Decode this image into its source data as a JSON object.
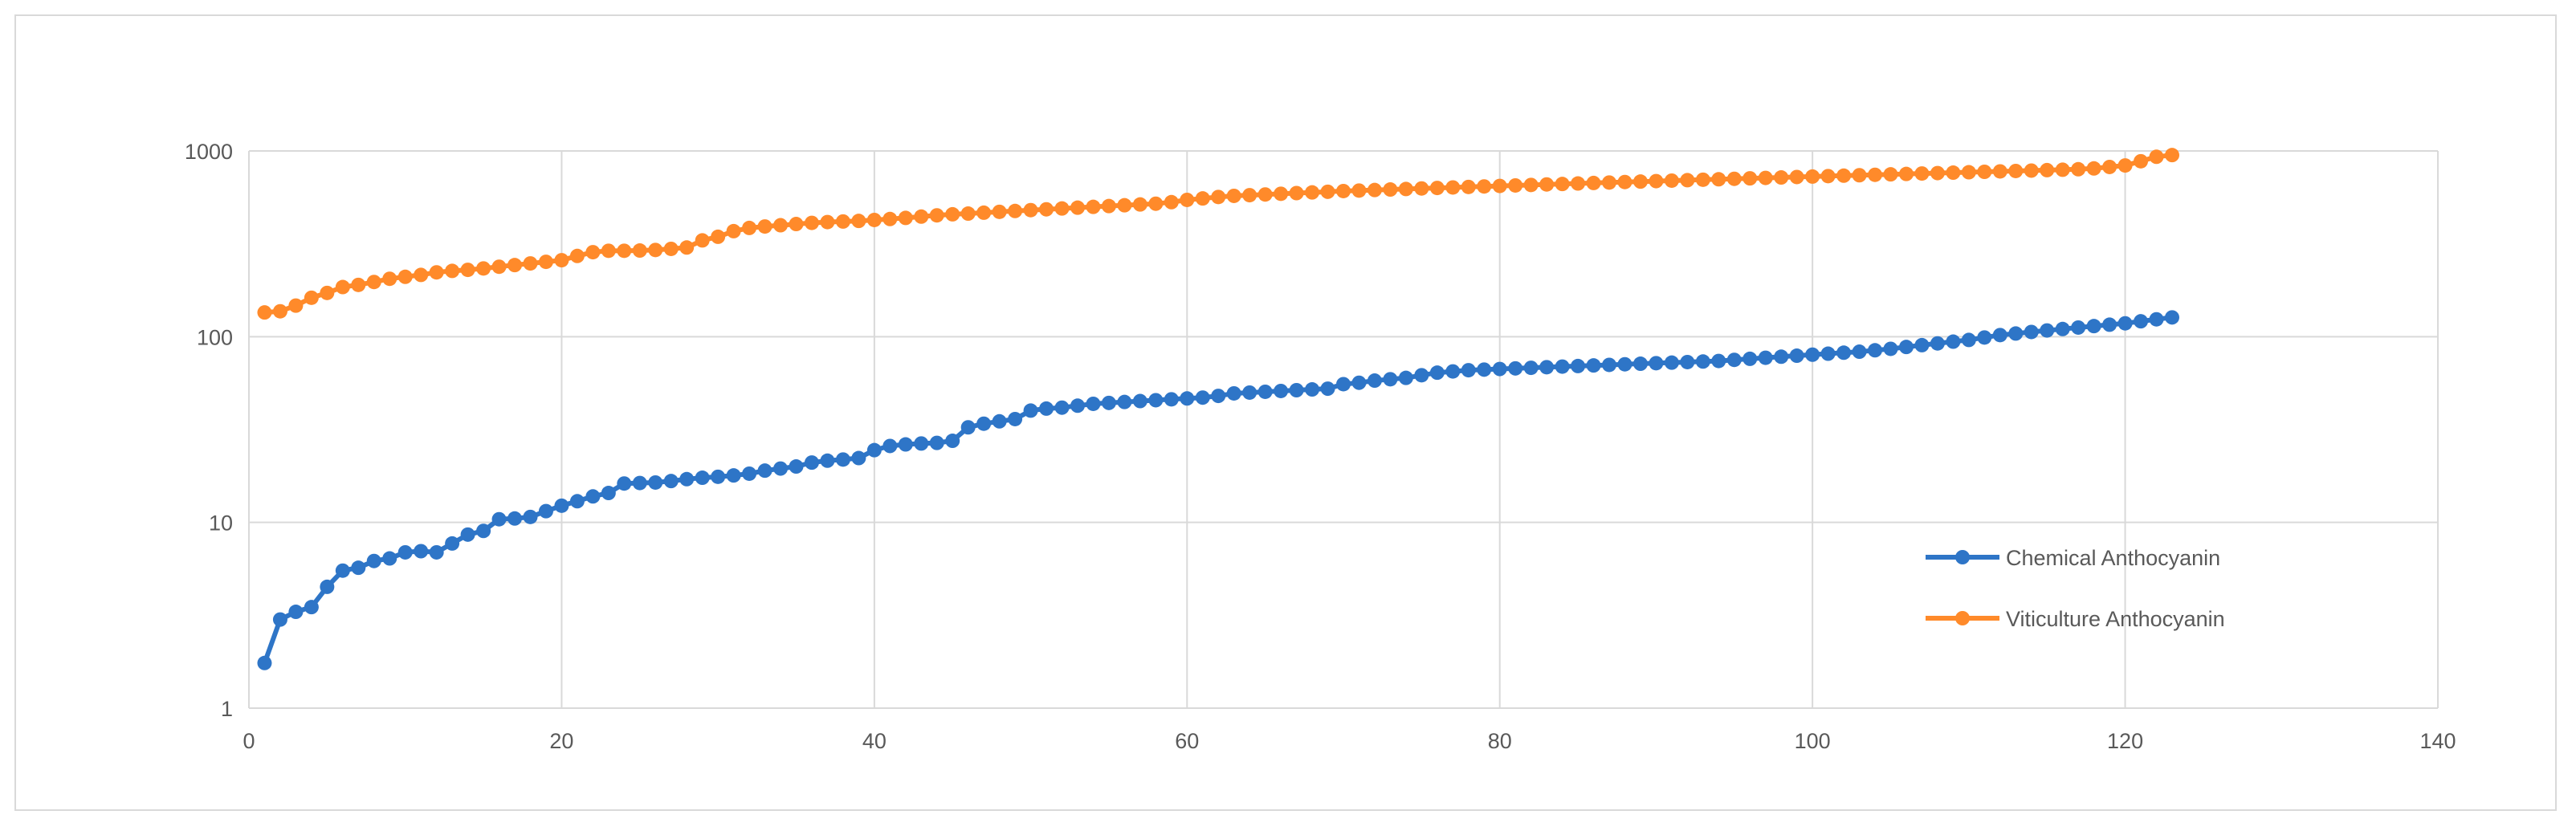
{
  "chart_data": {
    "type": "line",
    "title": "",
    "xlabel": "",
    "ylabel": "",
    "xlim": [
      0,
      140
    ],
    "ylim": [
      1,
      1000
    ],
    "yscale": "log",
    "x_ticks": [
      "0",
      "20",
      "40",
      "60",
      "80",
      "100",
      "120",
      "140"
    ],
    "y_ticks": [
      "1",
      "10",
      "100",
      "1000"
    ],
    "grid": true,
    "legend_position": "bottom-right",
    "series": [
      {
        "name": "Chemical Anthocyanin",
        "color": "#2e75c7",
        "marker": "circle",
        "x": [
          1,
          2,
          3,
          4,
          5,
          6,
          7,
          8,
          9,
          10,
          11,
          12,
          13,
          14,
          15,
          16,
          17,
          18,
          19,
          20,
          21,
          22,
          23,
          24,
          25,
          26,
          27,
          28,
          29,
          30,
          31,
          32,
          33,
          34,
          35,
          36,
          37,
          38,
          39,
          40,
          41,
          42,
          43,
          44,
          45,
          46,
          47,
          48,
          49,
          50,
          51,
          52,
          53,
          54,
          55,
          56,
          57,
          58,
          59,
          60,
          61,
          62,
          63,
          64,
          65,
          66,
          67,
          68,
          69,
          70,
          71,
          72,
          73,
          74,
          75,
          76,
          77,
          78,
          79,
          80,
          81,
          82,
          83,
          84,
          85,
          86,
          87,
          88,
          89,
          90,
          91,
          92,
          93,
          94,
          95,
          96,
          97,
          98,
          99,
          100,
          101,
          102,
          103,
          104,
          105,
          106,
          107,
          108,
          109,
          110,
          111,
          112,
          113,
          114,
          115,
          116,
          117,
          118,
          119,
          120,
          121,
          122,
          123
        ],
        "values": [
          1.75,
          3.0,
          3.3,
          3.5,
          4.5,
          5.5,
          5.7,
          6.2,
          6.4,
          6.9,
          7.0,
          6.9,
          7.7,
          8.6,
          9.0,
          10.4,
          10.5,
          10.7,
          11.5,
          12.3,
          13.0,
          13.8,
          14.4,
          16.2,
          16.3,
          16.4,
          16.7,
          17.1,
          17.4,
          17.6,
          17.9,
          18.3,
          19.0,
          19.5,
          20.0,
          21.0,
          21.5,
          21.8,
          22.2,
          24.5,
          25.8,
          26.3,
          26.6,
          26.8,
          27.5,
          32.5,
          34.0,
          35.0,
          36.0,
          40.0,
          41.0,
          41.5,
          42.5,
          43.5,
          44.0,
          44.5,
          45.0,
          45.5,
          46.0,
          46.5,
          47.0,
          48.0,
          49.5,
          50.0,
          50.5,
          51.0,
          51.5,
          52.0,
          52.5,
          55.5,
          56.5,
          58.0,
          59.0,
          60.0,
          62.0,
          64.0,
          65.0,
          66.0,
          66.5,
          67.0,
          67.5,
          68.0,
          68.5,
          69.0,
          69.5,
          70.0,
          70.5,
          71.0,
          71.5,
          72.0,
          72.5,
          73.0,
          73.5,
          74.0,
          75.0,
          76.0,
          77.0,
          78.0,
          79.0,
          80.0,
          81.0,
          82.0,
          83.0,
          84.5,
          86.0,
          88.0,
          90.0,
          92.0,
          94.0,
          96.0,
          99.0,
          102.0,
          104.0,
          106.0,
          108.0,
          110.0,
          112.0,
          114.0,
          116.0,
          118.0,
          121.0,
          124.0,
          127.0
        ]
      },
      {
        "name": "Viticulture Anthocyanin",
        "color": "#ff8a2a",
        "marker": "circle",
        "x": [
          1,
          2,
          3,
          4,
          5,
          6,
          7,
          8,
          9,
          10,
          11,
          12,
          13,
          14,
          15,
          16,
          17,
          18,
          19,
          20,
          21,
          22,
          23,
          24,
          25,
          26,
          27,
          28,
          29,
          30,
          31,
          32,
          33,
          34,
          35,
          36,
          37,
          38,
          39,
          40,
          41,
          42,
          43,
          44,
          45,
          46,
          47,
          48,
          49,
          50,
          51,
          52,
          53,
          54,
          55,
          56,
          57,
          58,
          59,
          60,
          61,
          62,
          63,
          64,
          65,
          66,
          67,
          68,
          69,
          70,
          71,
          72,
          73,
          74,
          75,
          76,
          77,
          78,
          79,
          80,
          81,
          82,
          83,
          84,
          85,
          86,
          87,
          88,
          89,
          90,
          91,
          92,
          93,
          94,
          95,
          96,
          97,
          98,
          99,
          100,
          101,
          102,
          103,
          104,
          105,
          106,
          107,
          108,
          109,
          110,
          111,
          112,
          113,
          114,
          115,
          116,
          117,
          118,
          119,
          120,
          121,
          122,
          123
        ],
        "values": [
          135,
          137,
          147,
          162,
          172,
          185,
          190,
          197,
          205,
          210,
          215,
          222,
          226,
          229,
          233,
          238,
          243,
          248,
          253,
          258,
          272,
          285,
          290,
          290,
          291,
          293,
          297,
          302,
          330,
          345,
          370,
          385,
          392,
          398,
          404,
          410,
          414,
          417,
          420,
          425,
          430,
          436,
          443,
          450,
          456,
          460,
          465,
          470,
          475,
          480,
          485,
          490,
          495,
          500,
          505,
          510,
          515,
          520,
          530,
          545,
          555,
          565,
          573,
          578,
          583,
          588,
          593,
          598,
          603,
          608,
          612,
          616,
          620,
          624,
          628,
          632,
          636,
          640,
          644,
          648,
          652,
          656,
          660,
          664,
          668,
          672,
          676,
          680,
          684,
          688,
          692,
          696,
          700,
          704,
          708,
          712,
          716,
          720,
          724,
          728,
          732,
          736,
          740,
          744,
          748,
          752,
          756,
          760,
          764,
          768,
          772,
          776,
          780,
          784,
          788,
          792,
          797,
          805,
          820,
          835,
          880,
          930,
          950
        ]
      }
    ]
  }
}
